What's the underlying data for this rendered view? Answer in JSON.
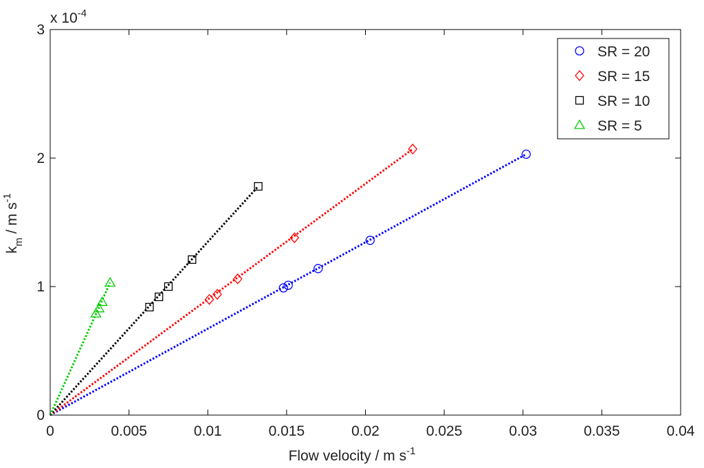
{
  "chart_data": {
    "type": "scatter",
    "xlabel": "Flow velocity / m s",
    "xlabel_sup": "-1",
    "ylabel_main": "k",
    "ylabel_sub": "m",
    "ylabel_rest": " / m s",
    "ylabel_sup": "-1",
    "multiplier_base": "x 10",
    "multiplier_exp": "-4",
    "xlim": [
      0,
      0.04
    ],
    "ylim": [
      0,
      3
    ],
    "x_ticks": [
      0,
      0.005,
      0.01,
      0.015,
      0.02,
      0.025,
      0.03,
      0.035,
      0.04
    ],
    "x_tick_labels": [
      "0",
      "0.005",
      "0.01",
      "0.015",
      "0.02",
      "0.025",
      "0.03",
      "0.035",
      "0.04"
    ],
    "y_ticks": [
      0,
      1,
      2,
      3
    ],
    "y_tick_labels": [
      "0",
      "1",
      "2",
      "3"
    ],
    "grid": false,
    "legend_position": "top-right",
    "series": [
      {
        "name": "SR = 20",
        "marker": "circle",
        "color": "#0000ff",
        "x": [
          0.0148,
          0.0151,
          0.017,
          0.0203,
          0.0302
        ],
        "y": [
          0.99,
          1.01,
          1.14,
          1.36,
          2.03
        ],
        "fit_end": [
          0.0302,
          2.03
        ]
      },
      {
        "name": "SR = 15",
        "marker": "diamond",
        "color": "#ff0000",
        "x": [
          0.0101,
          0.0106,
          0.0119,
          0.0155,
          0.023
        ],
        "y": [
          0.9,
          0.94,
          1.06,
          1.38,
          2.07
        ],
        "fit_end": [
          0.023,
          2.07
        ]
      },
      {
        "name": "SR = 10",
        "marker": "square",
        "color": "#000000",
        "x": [
          0.0063,
          0.0069,
          0.0075,
          0.009,
          0.0132
        ],
        "y": [
          0.84,
          0.92,
          1.0,
          1.21,
          1.78
        ],
        "fit_end": [
          0.0132,
          1.78
        ]
      },
      {
        "name": "SR = 5",
        "marker": "triangle",
        "color": "#00cc00",
        "x": [
          0.0029,
          0.0031,
          0.0033,
          0.0038
        ],
        "y": [
          0.79,
          0.83,
          0.88,
          1.03
        ],
        "fit_end": [
          0.0038,
          1.03
        ]
      }
    ]
  }
}
